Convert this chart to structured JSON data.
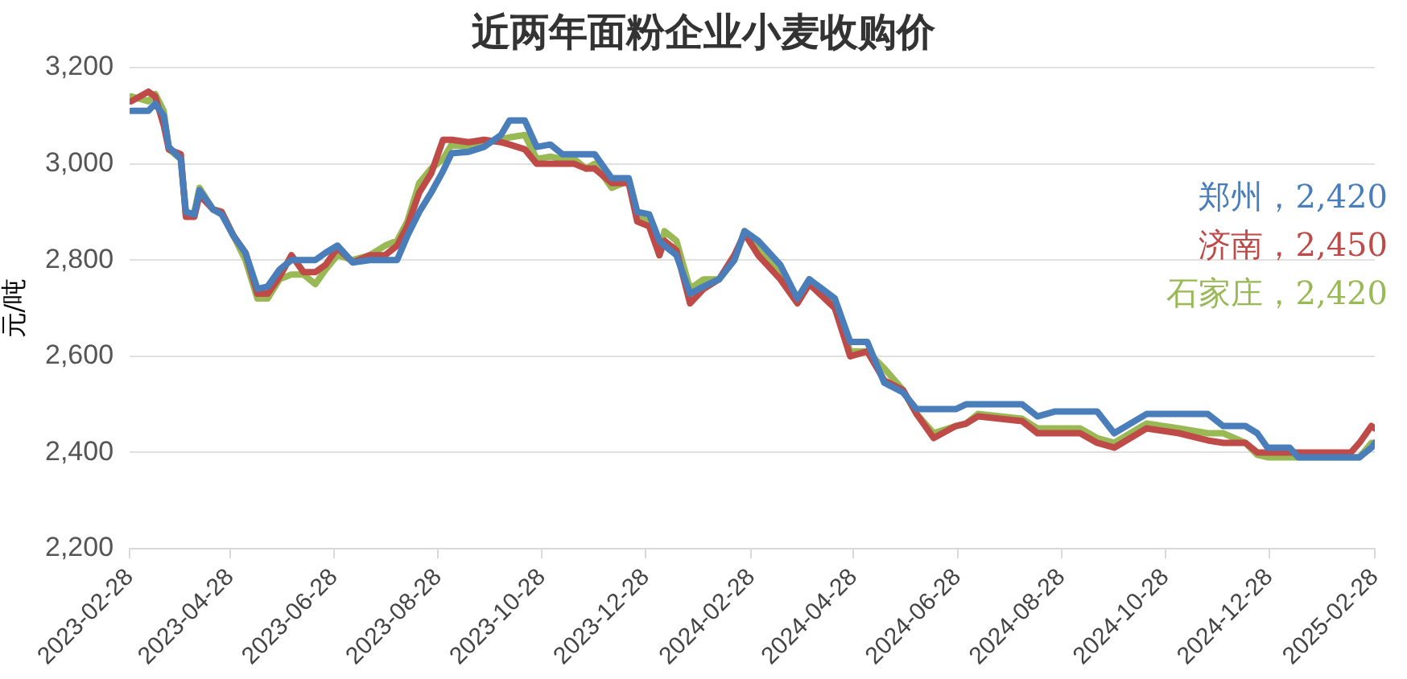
{
  "chart_data": {
    "type": "line",
    "title": "近两年面粉企业小麦收购价",
    "ylabel": "元/吨",
    "x": [
      "2023-03-01",
      "2023-03-11",
      "2023-03-15",
      "2023-03-20",
      "2023-03-23",
      "2023-03-30",
      "2023-04-02",
      "2023-04-07",
      "2023-04-10",
      "2023-04-18",
      "2023-04-23",
      "2023-04-30",
      "2023-05-07",
      "2023-05-14",
      "2023-05-20",
      "2023-05-27",
      "2023-06-03",
      "2023-06-10",
      "2023-06-17",
      "2023-06-23",
      "2023-06-30",
      "2023-07-09",
      "2023-07-19",
      "2023-07-28",
      "2023-08-04",
      "2023-08-10",
      "2023-08-17",
      "2023-08-24",
      "2023-08-31",
      "2023-09-05",
      "2023-09-15",
      "2023-09-24",
      "2023-10-04",
      "2023-10-09",
      "2023-10-18",
      "2023-10-25",
      "2023-11-02",
      "2023-11-09",
      "2023-11-16",
      "2023-11-23",
      "2023-11-28",
      "2023-12-08",
      "2023-12-18",
      "2023-12-23",
      "2023-12-30",
      "2024-01-05",
      "2024-01-08",
      "2024-01-15",
      "2024-01-23",
      "2024-01-31",
      "2024-02-09",
      "2024-02-18",
      "2024-02-24",
      "2024-03-03",
      "2024-03-16",
      "2024-03-26",
      "2024-04-02",
      "2024-04-17",
      "2024-04-26",
      "2024-05-06",
      "2024-05-16",
      "2024-05-27",
      "2024-06-04",
      "2024-06-14",
      "2024-06-27",
      "2024-07-03",
      "2024-07-10",
      "2024-08-05",
      "2024-08-14",
      "2024-08-24",
      "2024-09-08",
      "2024-09-18",
      "2024-09-28",
      "2024-10-17",
      "2024-11-05",
      "2024-11-22",
      "2024-12-01",
      "2024-12-14",
      "2024-12-21",
      "2024-12-27",
      "2025-01-09",
      "2025-01-14",
      "2025-02-14",
      "2025-02-19",
      "2025-02-26",
      "2025-02-28"
    ],
    "series": [
      {
        "color": "#4a7ebb",
        "values": [
          3110,
          3110,
          3125,
          3100,
          3035,
          3010,
          2900,
          2895,
          2945,
          2905,
          2895,
          2850,
          2815,
          2740,
          2745,
          2780,
          2800,
          2800,
          2800,
          2815,
          2830,
          2795,
          2800,
          2800,
          2800,
          2850,
          2900,
          2940,
          2985,
          3022,
          3025,
          3035,
          3060,
          3090,
          3090,
          3035,
          3040,
          3020,
          3020,
          3020,
          3020,
          2970,
          2970,
          2900,
          2895,
          2840,
          2830,
          2810,
          2730,
          2745,
          2760,
          2800,
          2860,
          2840,
          2790,
          2720,
          2760,
          2720,
          2630,
          2630,
          2545,
          2525,
          2490,
          2490,
          2490,
          2500,
          2500,
          2500,
          2475,
          2485,
          2485,
          2485,
          2440,
          2480,
          2480,
          2480,
          2455,
          2455,
          2440,
          2410,
          2410,
          2390,
          2390,
          2390,
          2410,
          2420
        ]
      },
      {
        "color": "#be4b48",
        "values": [
          3130,
          3150,
          3140,
          3080,
          3030,
          3020,
          2890,
          2890,
          2935,
          2905,
          2900,
          2850,
          2815,
          2730,
          2730,
          2765,
          2810,
          2775,
          2775,
          2790,
          2825,
          2795,
          2810,
          2810,
          2830,
          2870,
          2940,
          2980,
          3050,
          3050,
          3045,
          3050,
          3045,
          3040,
          3030,
          3000,
          3000,
          3000,
          3000,
          2990,
          2990,
          2960,
          2960,
          2880,
          2870,
          2810,
          2840,
          2820,
          2710,
          2740,
          2760,
          2810,
          2855,
          2810,
          2760,
          2710,
          2750,
          2700,
          2600,
          2610,
          2550,
          2530,
          2480,
          2430,
          2455,
          2460,
          2475,
          2465,
          2440,
          2440,
          2440,
          2420,
          2410,
          2450,
          2440,
          2425,
          2420,
          2420,
          2400,
          2400,
          2400,
          2400,
          2400,
          2420,
          2455,
          2450
        ]
      },
      {
        "color": "#98b954",
        "values": [
          3140,
          3130,
          3145,
          3110,
          3030,
          3010,
          2895,
          2900,
          2950,
          2905,
          2900,
          2850,
          2800,
          2720,
          2720,
          2760,
          2770,
          2770,
          2750,
          2780,
          2810,
          2800,
          2810,
          2830,
          2840,
          2880,
          2960,
          2990,
          3010,
          3040,
          3035,
          3045,
          3050,
          3055,
          3060,
          3010,
          3015,
          3010,
          3010,
          2990,
          3000,
          2950,
          2965,
          2890,
          2880,
          2810,
          2860,
          2840,
          2740,
          2760,
          2760,
          2800,
          2860,
          2820,
          2780,
          2720,
          2760,
          2710,
          2610,
          2610,
          2575,
          2530,
          2480,
          2440,
          2455,
          2460,
          2480,
          2470,
          2450,
          2450,
          2450,
          2430,
          2420,
          2460,
          2450,
          2440,
          2440,
          2420,
          2395,
          2390,
          2390,
          2390,
          2390,
          2390,
          2420,
          2420
        ]
      }
    ],
    "annotations": [
      "郑州，2,420",
      "济南，2,450",
      "石家庄，2,420"
    ],
    "xlim": [
      "2023-02-28",
      "2025-02-28"
    ],
    "xticks": [
      "2023-02-28",
      "2023-04-28",
      "2023-06-28",
      "2023-08-28",
      "2023-10-28",
      "2023-12-28",
      "2024-02-28",
      "2024-04-28",
      "2024-06-28",
      "2024-08-28",
      "2024-10-28",
      "2024-12-28",
      "2025-02-28"
    ],
    "ylim": [
      2200,
      3200
    ],
    "yticks": [
      {
        "value": 2200,
        "label": "2,200"
      },
      {
        "value": 2400,
        "label": "2,400"
      },
      {
        "value": 2600,
        "label": "2,600"
      },
      {
        "value": 2800,
        "label": "2,800"
      },
      {
        "value": 3000,
        "label": "3,000"
      },
      {
        "value": 3200,
        "label": "3,200"
      }
    ],
    "grid": "y",
    "legend": false,
    "marker": "none",
    "line_style": "solid"
  }
}
